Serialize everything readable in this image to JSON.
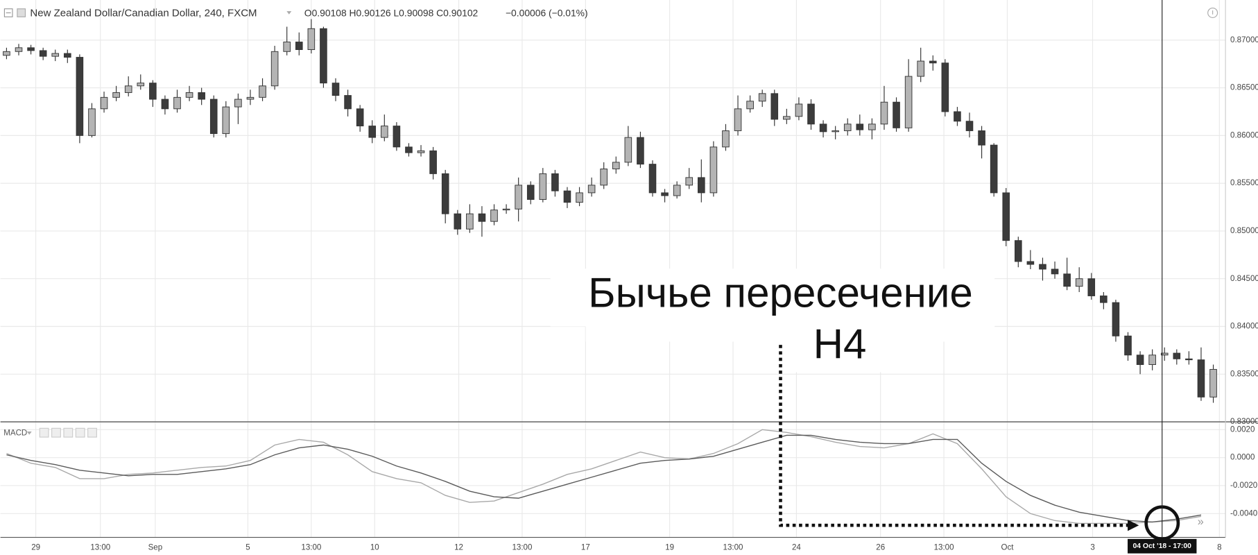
{
  "chart_data": [
    {
      "type": "candlestick",
      "title": "New Zealand Dollar/Canadian Dollar, 240, FXCM",
      "subtitle": "O0.90108 H0.90126 L0.90098 C0.90102",
      "change": "−0.00006 (−0.01%)",
      "annotation": [
        "Бычье пересечение",
        "H4"
      ],
      "crosshair": {
        "x": 94.8,
        "label": "04 Oct '18 - 17:00"
      },
      "up_color": "#b4b4b4",
      "down_color": "#3c3c3c",
      "outline_color": "#333333",
      "grid": true,
      "xlim": [
        -0.5,
        100
      ],
      "ylim": [
        0.83,
        0.8742
      ],
      "yticks": [
        {
          "value": 0.83,
          "label": "0.83000"
        },
        {
          "value": 0.835,
          "label": "0.83500"
        },
        {
          "value": 0.84,
          "label": "0.84000"
        },
        {
          "value": 0.845,
          "label": "0.84500"
        },
        {
          "value": 0.85,
          "label": "0.85000"
        },
        {
          "value": 0.855,
          "label": "0.85500"
        },
        {
          "value": 0.86,
          "label": "0.86000"
        },
        {
          "value": 0.865,
          "label": "0.86500"
        },
        {
          "value": 0.87,
          "label": "0.87000"
        }
      ],
      "open": [
        0.8684,
        0.8688,
        0.8692,
        0.8689,
        0.8683,
        0.8686,
        0.8682,
        0.86,
        0.8628,
        0.864,
        0.8645,
        0.8652,
        0.8655,
        0.8638,
        0.8628,
        0.864,
        0.8645,
        0.8638,
        0.8602,
        0.863,
        0.8638,
        0.864,
        0.8652,
        0.8688,
        0.8698,
        0.869,
        0.8712,
        0.8655,
        0.8642,
        0.8628,
        0.861,
        0.8598,
        0.861,
        0.8588,
        0.8582,
        0.8584,
        0.856,
        0.8518,
        0.8502,
        0.8518,
        0.851,
        0.8522,
        0.8523,
        0.8548,
        0.8533,
        0.856,
        0.8542,
        0.853,
        0.854,
        0.8548,
        0.8565,
        0.8572,
        0.8598,
        0.857,
        0.854,
        0.8537,
        0.8548,
        0.8556,
        0.854,
        0.8588,
        0.8605,
        0.8628,
        0.8636,
        0.8644,
        0.8617,
        0.862,
        0.8633,
        0.8612,
        0.8604,
        0.8605,
        0.8612,
        0.8606,
        0.8612,
        0.8635,
        0.8608,
        0.8662,
        0.8678,
        0.8676,
        0.8625,
        0.8615,
        0.8605,
        0.859,
        0.854,
        0.849,
        0.8468,
        0.8465,
        0.846,
        0.8455,
        0.8442,
        0.845,
        0.8432,
        0.8425,
        0.839,
        0.837,
        0.836,
        0.837,
        0.8372,
        0.8366,
        0.8365,
        0.8326
      ],
      "high": [
        0.8692,
        0.8696,
        0.8695,
        0.8692,
        0.869,
        0.869,
        0.8685,
        0.8634,
        0.8646,
        0.8652,
        0.8662,
        0.8664,
        0.8658,
        0.8642,
        0.8648,
        0.8652,
        0.865,
        0.8642,
        0.8636,
        0.8644,
        0.8648,
        0.866,
        0.8694,
        0.8714,
        0.8708,
        0.8722,
        0.8714,
        0.866,
        0.8648,
        0.8632,
        0.8616,
        0.8622,
        0.8614,
        0.8592,
        0.859,
        0.8588,
        0.8564,
        0.8522,
        0.8528,
        0.8526,
        0.8528,
        0.8528,
        0.8556,
        0.8552,
        0.8566,
        0.8564,
        0.8546,
        0.8546,
        0.8556,
        0.8572,
        0.8578,
        0.861,
        0.8604,
        0.8574,
        0.8544,
        0.8552,
        0.8566,
        0.8575,
        0.8594,
        0.8612,
        0.8642,
        0.8642,
        0.8648,
        0.8648,
        0.8628,
        0.864,
        0.8638,
        0.8616,
        0.861,
        0.8618,
        0.8622,
        0.8618,
        0.8652,
        0.864,
        0.868,
        0.8692,
        0.8684,
        0.868,
        0.863,
        0.8624,
        0.861,
        0.8592,
        0.8545,
        0.8494,
        0.848,
        0.8472,
        0.8468,
        0.8472,
        0.8462,
        0.8456,
        0.8436,
        0.8428,
        0.8394,
        0.8374,
        0.8376,
        0.8378,
        0.8376,
        0.8374,
        0.8378,
        0.836
      ],
      "low": [
        0.868,
        0.8684,
        0.8685,
        0.8679,
        0.8678,
        0.8676,
        0.8592,
        0.8598,
        0.8624,
        0.8636,
        0.8641,
        0.8648,
        0.863,
        0.8622,
        0.8624,
        0.8636,
        0.8632,
        0.8598,
        0.8598,
        0.8612,
        0.8632,
        0.8636,
        0.8648,
        0.8684,
        0.8684,
        0.8686,
        0.865,
        0.8636,
        0.862,
        0.8604,
        0.8592,
        0.8594,
        0.8584,
        0.8578,
        0.8578,
        0.8554,
        0.8508,
        0.8496,
        0.8498,
        0.8494,
        0.8506,
        0.8518,
        0.851,
        0.8528,
        0.853,
        0.8536,
        0.8524,
        0.8526,
        0.8536,
        0.8544,
        0.856,
        0.8568,
        0.8566,
        0.8536,
        0.853,
        0.8534,
        0.8544,
        0.853,
        0.8536,
        0.8584,
        0.86,
        0.8624,
        0.863,
        0.861,
        0.8612,
        0.8616,
        0.8606,
        0.8598,
        0.8596,
        0.86,
        0.86,
        0.8596,
        0.8606,
        0.8604,
        0.8604,
        0.8656,
        0.8668,
        0.862,
        0.861,
        0.8598,
        0.8576,
        0.8536,
        0.8484,
        0.8462,
        0.846,
        0.8448,
        0.845,
        0.8438,
        0.8436,
        0.8428,
        0.8418,
        0.8384,
        0.8364,
        0.835,
        0.8354,
        0.8364,
        0.836,
        0.836,
        0.8322,
        0.832
      ],
      "close": [
        0.8688,
        0.8692,
        0.8689,
        0.8683,
        0.8686,
        0.8682,
        0.86,
        0.8628,
        0.864,
        0.8645,
        0.8652,
        0.8655,
        0.8638,
        0.8628,
        0.864,
        0.8645,
        0.8638,
        0.8602,
        0.863,
        0.8638,
        0.864,
        0.8652,
        0.8688,
        0.8698,
        0.869,
        0.8712,
        0.8655,
        0.8642,
        0.8628,
        0.861,
        0.8598,
        0.861,
        0.8588,
        0.8582,
        0.8584,
        0.856,
        0.8518,
        0.8502,
        0.8518,
        0.851,
        0.8522,
        0.8523,
        0.8548,
        0.8533,
        0.856,
        0.8542,
        0.853,
        0.854,
        0.8548,
        0.8565,
        0.8572,
        0.8598,
        0.857,
        0.854,
        0.8537,
        0.8548,
        0.8556,
        0.854,
        0.8588,
        0.8605,
        0.8628,
        0.8636,
        0.8644,
        0.8617,
        0.862,
        0.8633,
        0.8612,
        0.8604,
        0.8605,
        0.8612,
        0.8606,
        0.8612,
        0.8635,
        0.8608,
        0.8662,
        0.8678,
        0.8676,
        0.8625,
        0.8615,
        0.8605,
        0.859,
        0.854,
        0.849,
        0.8468,
        0.8465,
        0.846,
        0.8455,
        0.8442,
        0.845,
        0.8432,
        0.8425,
        0.839,
        0.837,
        0.836,
        0.837,
        0.8372,
        0.8366,
        0.8365,
        0.8326,
        0.8355
      ]
    },
    {
      "type": "line",
      "title": "MACD",
      "grid": true,
      "xlim": [
        -0.5,
        100
      ],
      "ylim": [
        -0.0057,
        0.0025
      ],
      "yticks": [
        {
          "value": 0.002,
          "label": "0.0020"
        },
        {
          "value": 0,
          "label": "0.0000"
        },
        {
          "value": -0.002,
          "label": "-0.0020"
        },
        {
          "value": -0.004,
          "label": "-0.0040"
        }
      ],
      "xticks": [
        {
          "value": 2.4,
          "label": "29"
        },
        {
          "value": 7.7,
          "label": "13:00"
        },
        {
          "value": 12.2,
          "label": "Sep"
        },
        {
          "value": 19.8,
          "label": "5"
        },
        {
          "value": 25,
          "label": "13:00"
        },
        {
          "value": 30.2,
          "label": "10"
        },
        {
          "value": 37.1,
          "label": "12"
        },
        {
          "value": 42.3,
          "label": "13:00"
        },
        {
          "value": 47.5,
          "label": "17"
        },
        {
          "value": 54.4,
          "label": "19"
        },
        {
          "value": 59.6,
          "label": "13:00"
        },
        {
          "value": 64.8,
          "label": "24"
        },
        {
          "value": 71.7,
          "label": "26"
        },
        {
          "value": 76.9,
          "label": "13:00"
        },
        {
          "value": 82.1,
          "label": "Oct"
        },
        {
          "value": 89.1,
          "label": "3"
        },
        {
          "value": 99.5,
          "label": "8"
        }
      ],
      "x": [
        0,
        2,
        4,
        6,
        8,
        10,
        12,
        14,
        16,
        18,
        20,
        22,
        24,
        26,
        28,
        30,
        32,
        34,
        36,
        38,
        40,
        42,
        44,
        46,
        48,
        50,
        52,
        54,
        56,
        58,
        60,
        62,
        64,
        66,
        68,
        70,
        72,
        74,
        76,
        78,
        80,
        82,
        84,
        86,
        88,
        90,
        92,
        94,
        96,
        98
      ],
      "series": [
        {
          "color": "#a8a8a8",
          "values": [
            0.0003,
            -0.0004,
            -0.0007,
            -0.0015,
            -0.0015,
            -0.0012,
            -0.0011,
            -0.0009,
            -0.0007,
            -0.0006,
            -0.0002,
            0.0009,
            0.0013,
            0.0011,
            0.0002,
            -0.001,
            -0.0015,
            -0.0018,
            -0.0027,
            -0.0032,
            -0.0031,
            -0.0025,
            -0.0019,
            -0.0012,
            -0.0008,
            -0.0002,
            0.0004,
            0,
            -0.0001,
            0.0003,
            0.001,
            0.002,
            0.0018,
            0.0015,
            0.0011,
            0.0008,
            0.0007,
            0.001,
            0.0017,
            0.001,
            -0.0008,
            -0.0028,
            -0.004,
            -0.0045,
            -0.0047,
            -0.0047,
            -0.0047,
            -0.0046,
            -0.0045,
            -0.0042
          ]
        },
        {
          "color": "#5a5a5a",
          "values": [
            0.0002,
            -0.0002,
            -0.0005,
            -0.0009,
            -0.0011,
            -0.0013,
            -0.0012,
            -0.0012,
            -0.001,
            -0.0008,
            -0.0005,
            0.0002,
            0.0007,
            0.0009,
            0.0006,
            0.0001,
            -0.0006,
            -0.0011,
            -0.0017,
            -0.0024,
            -0.0028,
            -0.0029,
            -0.0024,
            -0.0019,
            -0.0014,
            -0.0009,
            -0.0004,
            -0.0002,
            -0.0001,
            0.0001,
            0.0006,
            0.0011,
            0.0016,
            0.0016,
            0.0013,
            0.0011,
            0.001,
            0.001,
            0.0013,
            0.0013,
            -0.0004,
            -0.0017,
            -0.0027,
            -0.0034,
            -0.0039,
            -0.0042,
            -0.0045,
            -0.0046,
            -0.0044,
            -0.0041
          ]
        }
      ]
    }
  ]
}
